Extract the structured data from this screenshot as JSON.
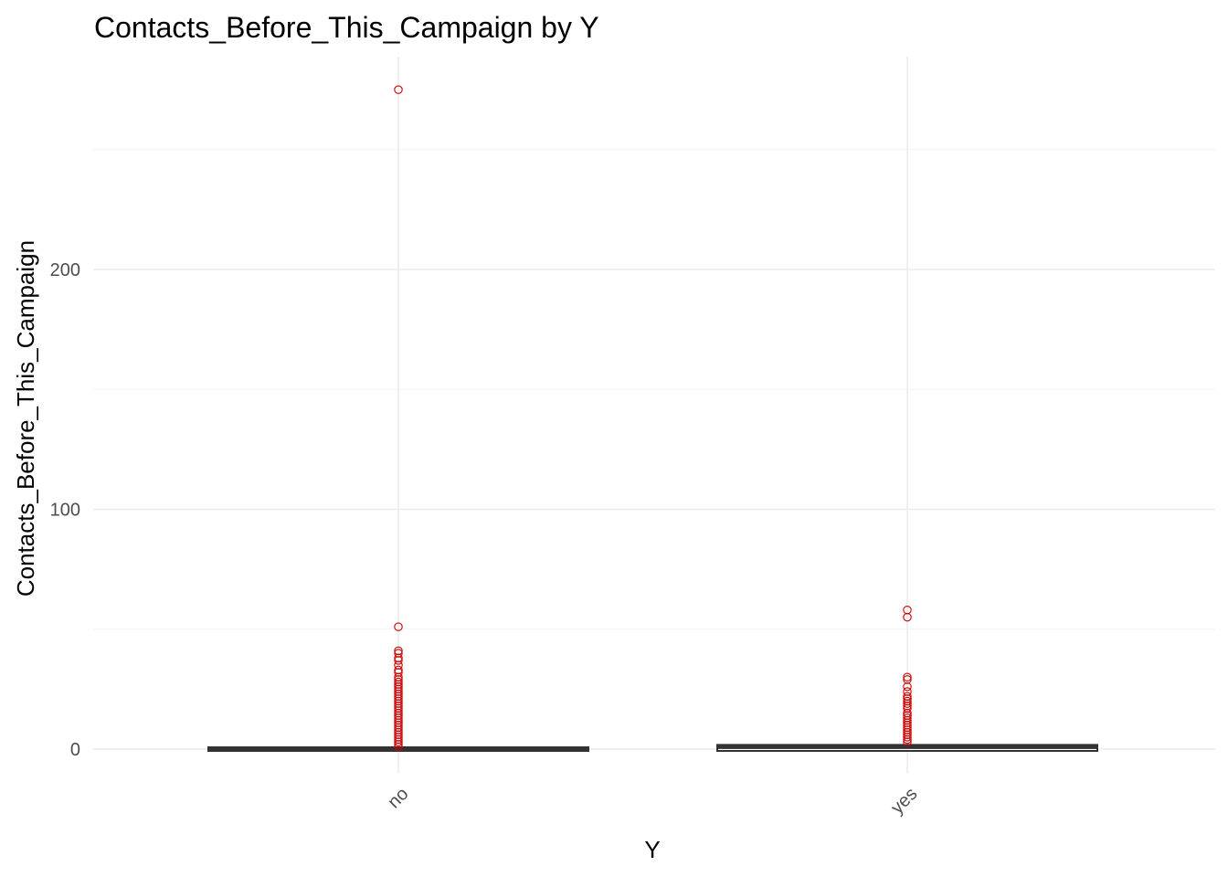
{
  "chart_data": {
    "type": "boxplot",
    "title": "Contacts_Before_This_Campaign by Y",
    "xlabel": "Y",
    "ylabel": "Contacts_Before_This_Campaign",
    "categories": [
      "no",
      "yes"
    ],
    "ylim": [
      -10,
      290
    ],
    "yticks": [
      0,
      100,
      200
    ],
    "yticks_minor": [
      50,
      150,
      250
    ],
    "grid": true,
    "legend": "none",
    "x_tick_rotation_deg": -45,
    "box_color": "#333333",
    "outlier_color": "#cc0000",
    "boxes": [
      {
        "category": "no",
        "min": 0,
        "q1": 0,
        "median": 0,
        "q3": 0,
        "max": 0,
        "outliers": [
          275,
          51,
          41,
          40,
          38,
          37,
          35,
          33,
          32,
          30,
          29,
          28,
          27,
          26,
          25,
          24,
          23,
          22,
          21,
          20,
          19,
          18,
          17,
          16,
          15,
          14,
          13,
          12,
          11,
          10,
          9,
          8,
          7,
          6,
          5,
          4,
          3,
          2,
          1
        ]
      },
      {
        "category": "yes",
        "min": 0,
        "q1": 0,
        "median": 1,
        "q3": 1,
        "max": 2,
        "outliers": [
          58,
          55,
          30,
          29,
          26,
          24,
          22,
          21,
          20,
          19,
          18,
          17,
          15,
          14,
          13,
          12,
          11,
          10,
          9,
          8,
          7,
          6,
          5,
          4,
          3
        ]
      }
    ]
  }
}
